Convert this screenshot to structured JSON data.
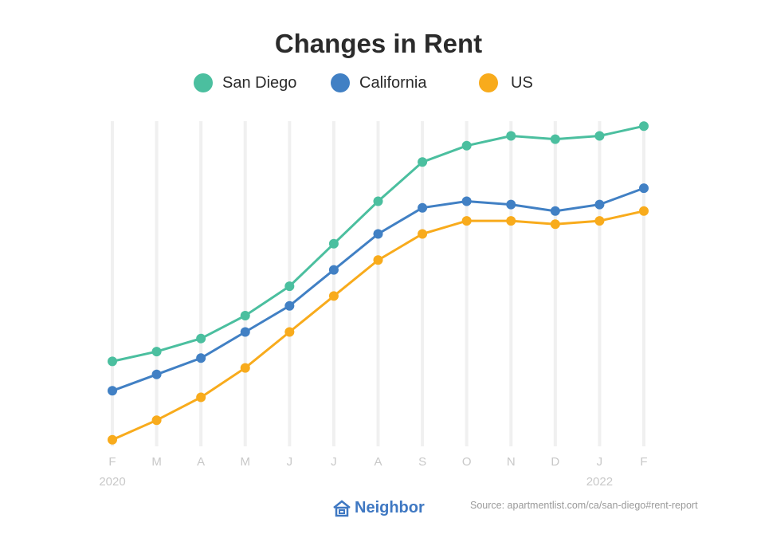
{
  "brand": {
    "name": "Neighbor",
    "logo_icon": "house-icon",
    "color": "#3f78c2"
  },
  "source": "Source: apartmentlist.com/ca/san-diego#rent-report",
  "chart_data": {
    "type": "line",
    "title": "Changes in Rent",
    "categories": [
      "F",
      "M",
      "A",
      "M",
      "J",
      "J",
      "A",
      "S",
      "O",
      "N",
      "D",
      "J",
      "F"
    ],
    "year_labels": [
      {
        "index": 0,
        "label": "2020"
      },
      {
        "index": 11,
        "label": "2022"
      }
    ],
    "xlabel": "",
    "ylabel": "",
    "y_axis_shown": false,
    "ylim": [
      0,
      100
    ],
    "grid": "vertical",
    "legend": "top-center",
    "series": [
      {
        "name": "San Diego",
        "color": "#4bbf9f",
        "values": [
          26,
          29,
          33,
          40,
          49,
          62,
          75,
          87,
          92,
          95,
          94,
          95,
          98
        ]
      },
      {
        "name": "California",
        "color": "#4180c4",
        "values": [
          17,
          22,
          27,
          35,
          43,
          54,
          65,
          73,
          75,
          74,
          72,
          74,
          79
        ]
      },
      {
        "name": "US",
        "color": "#f8ab1c",
        "values": [
          2,
          8,
          15,
          24,
          35,
          46,
          57,
          65,
          69,
          69,
          68,
          69,
          72
        ]
      }
    ]
  }
}
